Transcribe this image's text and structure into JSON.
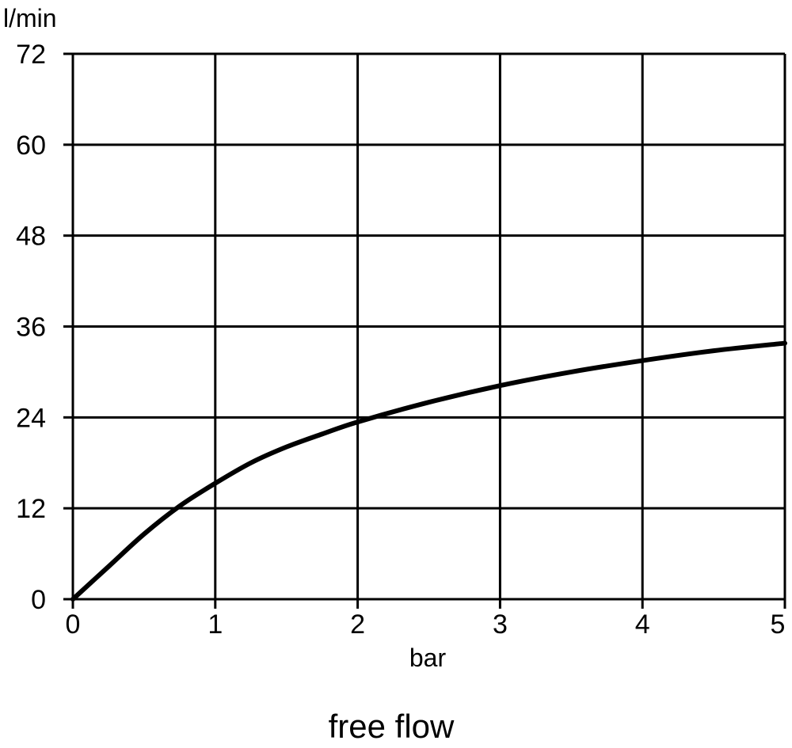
{
  "chart_data": {
    "type": "line",
    "title": "",
    "caption": "free flow",
    "xlabel": "bar",
    "ylabel": "l/min",
    "xlim": [
      0,
      5
    ],
    "ylim": [
      0,
      72
    ],
    "x_ticks": [
      0,
      1,
      2,
      3,
      4,
      5
    ],
    "y_ticks": [
      0,
      12,
      24,
      36,
      48,
      60,
      72
    ],
    "grid": true,
    "line_color": "#000000",
    "series": [
      {
        "x": [
          0,
          0.25,
          0.5,
          0.75,
          1.0,
          1.25,
          1.5,
          1.75,
          2.0,
          2.5,
          3.0,
          3.5,
          4.0,
          4.5,
          5.0
        ],
        "values": [
          0,
          4.3,
          8.6,
          12.3,
          15.3,
          18.0,
          20.1,
          21.8,
          23.4,
          26.0,
          28.2,
          30.0,
          31.5,
          32.8,
          33.8
        ]
      }
    ]
  }
}
